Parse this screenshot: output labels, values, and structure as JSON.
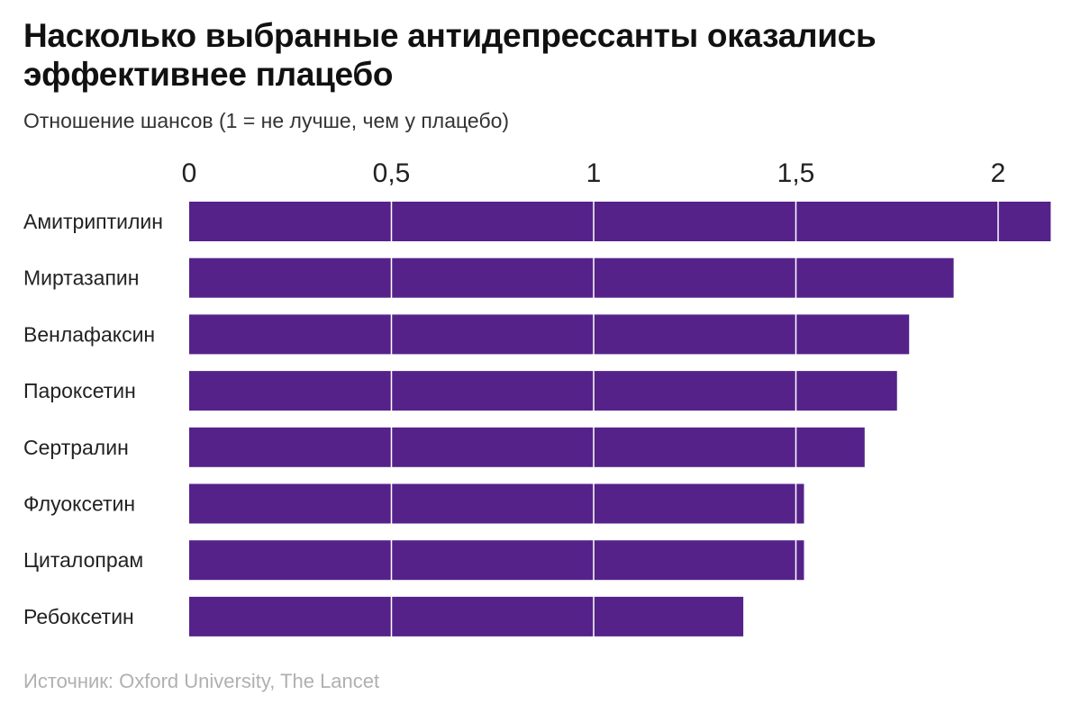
{
  "header": {
    "title": "Насколько выбранные антидепрессанты оказались эффективнее плацебо",
    "subtitle": "Отношение шансов (1 = не лучше, чем у плацебо)"
  },
  "footer": {
    "source": "Источник: Oxford University, The Lancet"
  },
  "chart_data": {
    "type": "bar",
    "orientation": "horizontal",
    "title": "Насколько выбранные антидепрессанты оказались эффективнее плацебо",
    "xlabel": "Отношение шансов (1 = не лучше, чем у плацебо)",
    "categories": [
      "Амитриптилин",
      "Миртазапин",
      "Венлафаксин",
      "Пароксетин",
      "Сертралин",
      "Флуоксетин",
      "Циталопрам",
      "Ребоксетин"
    ],
    "values": [
      2.13,
      1.89,
      1.78,
      1.75,
      1.67,
      1.52,
      1.52,
      1.37
    ],
    "xlim": [
      0,
      2.13
    ],
    "ticks": [
      0,
      0.5,
      1,
      1.5,
      2
    ],
    "tick_labels": [
      "0",
      "0,5",
      "1",
      "1,5",
      "2"
    ],
    "axis_position": "top",
    "grid": true,
    "colors": {
      "bar": "#55228a",
      "grid": "#ffffff"
    }
  }
}
